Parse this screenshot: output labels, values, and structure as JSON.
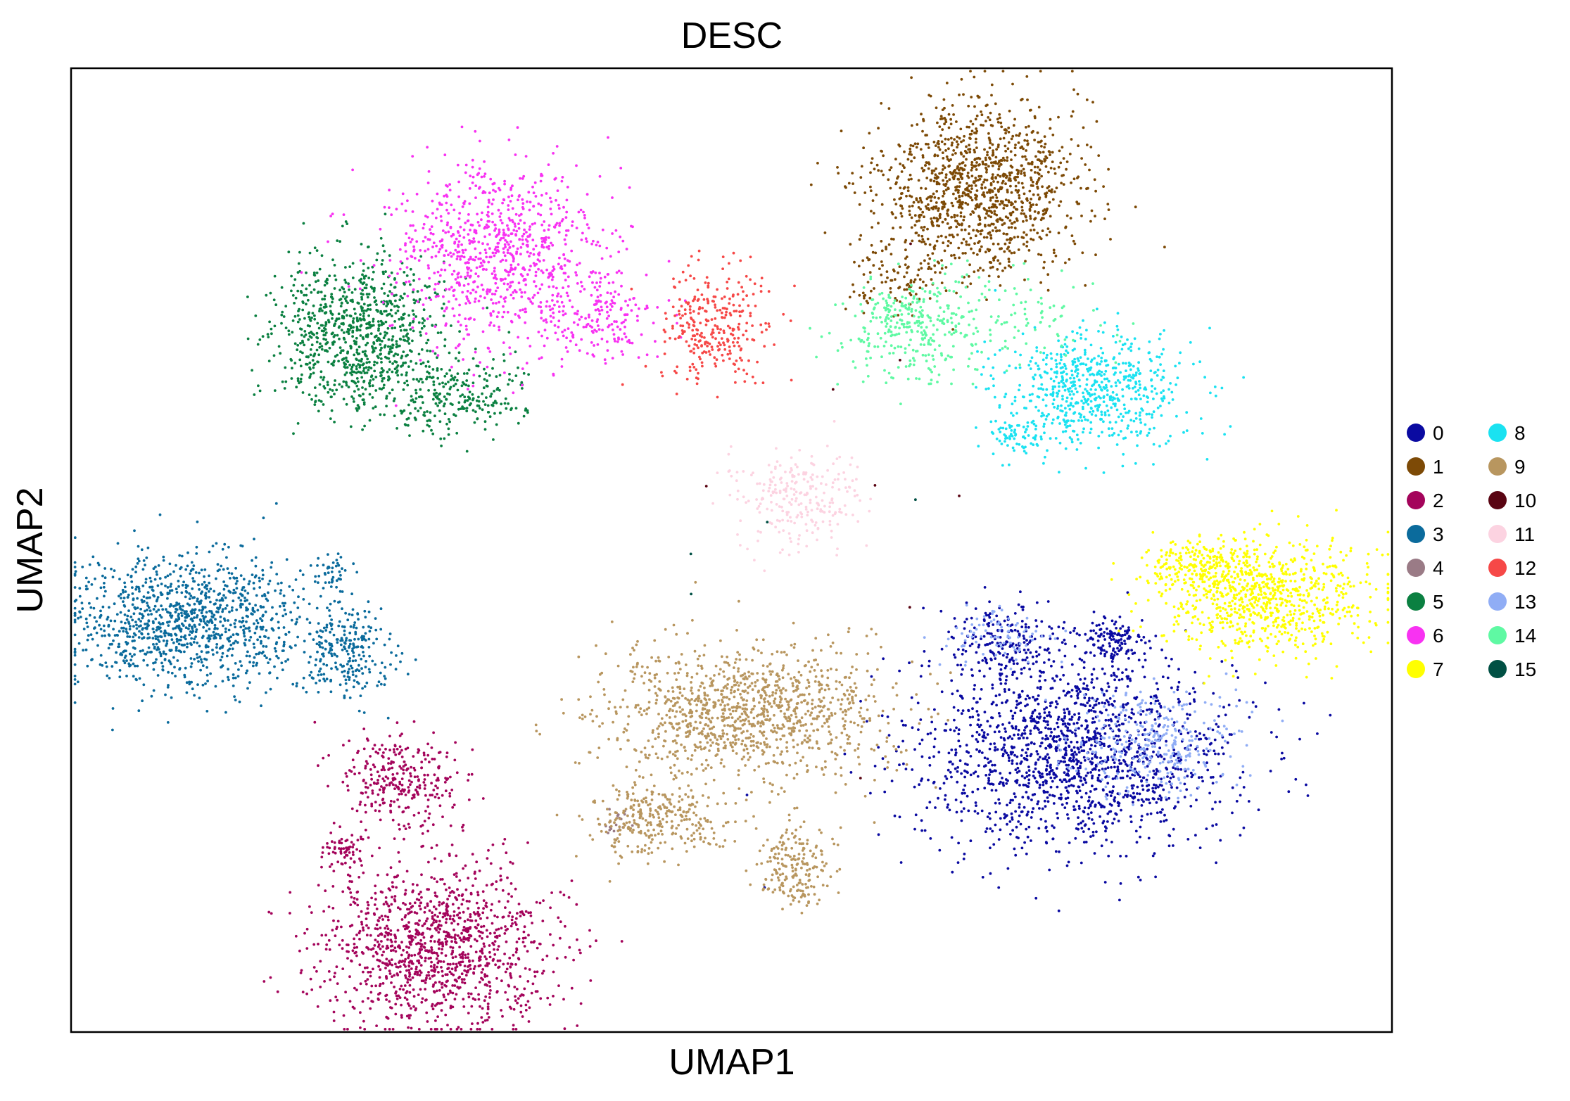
{
  "chart_data": {
    "type": "scatter",
    "title": "DESC",
    "xlabel": "UMAP1",
    "ylabel": "UMAP2",
    "xlim": [
      0,
      100
    ],
    "ylim": [
      0,
      100
    ],
    "grid": false,
    "ticks": false,
    "legend_position": "right",
    "legend_columns": 2,
    "series": [
      {
        "name": "0",
        "color": "#0a0aa1",
        "clusters": [
          {
            "x": 76.0,
            "y": 29.0,
            "sx": 6.0,
            "sy": 5.0,
            "n": 1600
          },
          {
            "x": 70.5,
            "y": 40.5,
            "sx": 2.2,
            "sy": 2.2,
            "n": 200
          },
          {
            "x": 78.9,
            "y": 40.5,
            "sx": 1.2,
            "sy": 1.2,
            "n": 120
          }
        ]
      },
      {
        "name": "1",
        "color": "#7d4a06",
        "clusters": [
          {
            "x": 68.6,
            "y": 87.5,
            "sx": 3.8,
            "sy": 4.5,
            "n": 1200
          },
          {
            "x": 62.0,
            "y": 78.0,
            "sx": 1.8,
            "sy": 1.5,
            "n": 80
          }
        ]
      },
      {
        "name": "2",
        "color": "#a4045b",
        "clusters": [
          {
            "x": 27.8,
            "y": 9.0,
            "sx": 4.5,
            "sy": 4.0,
            "n": 1200
          },
          {
            "x": 25.0,
            "y": 26.0,
            "sx": 2.2,
            "sy": 2.5,
            "n": 300
          },
          {
            "x": 20.5,
            "y": 19.0,
            "sx": 1.0,
            "sy": 0.8,
            "n": 60
          }
        ]
      },
      {
        "name": "3",
        "color": "#0b6b9c",
        "clusters": [
          {
            "x": 8.8,
            "y": 42.5,
            "sx": 4.5,
            "sy": 3.5,
            "n": 1100
          },
          {
            "x": 20.8,
            "y": 39.5,
            "sx": 1.8,
            "sy": 2.5,
            "n": 250
          },
          {
            "x": 19.7,
            "y": 48.0,
            "sx": 0.7,
            "sy": 0.9,
            "n": 40
          }
        ]
      },
      {
        "name": "4",
        "color": "#9a7b86",
        "clusters": [
          {
            "x": 41.2,
            "y": 21.5,
            "sx": 0.7,
            "sy": 0.8,
            "n": 18
          }
        ]
      },
      {
        "name": "5",
        "color": "#0b8041",
        "clusters": [
          {
            "x": 21.5,
            "y": 72.5,
            "sx": 3.2,
            "sy": 3.8,
            "n": 900
          },
          {
            "x": 29.2,
            "y": 66.0,
            "sx": 2.8,
            "sy": 2.0,
            "n": 250
          }
        ]
      },
      {
        "name": "6",
        "color": "#f832f2",
        "clusters": [
          {
            "x": 32.2,
            "y": 80.5,
            "sx": 4.2,
            "sy": 4.8,
            "n": 900
          },
          {
            "x": 40.0,
            "y": 74.0,
            "sx": 2.5,
            "sy": 2.0,
            "n": 150
          }
        ]
      },
      {
        "name": "7",
        "color": "#ffff00",
        "clusters": [
          {
            "x": 90.2,
            "y": 45.0,
            "sx": 4.0,
            "sy": 3.0,
            "n": 800
          },
          {
            "x": 85.0,
            "y": 48.5,
            "sx": 2.0,
            "sy": 1.5,
            "n": 200
          }
        ]
      },
      {
        "name": "8",
        "color": "#1ae2f1",
        "clusters": [
          {
            "x": 77.2,
            "y": 66.5,
            "sx": 3.5,
            "sy": 3.0,
            "n": 650
          },
          {
            "x": 71.5,
            "y": 62.0,
            "sx": 1.0,
            "sy": 1.2,
            "n": 60
          }
        ]
      },
      {
        "name": "9",
        "color": "#b8965f",
        "clusters": [
          {
            "x": 51.0,
            "y": 33.0,
            "sx": 5.5,
            "sy": 3.5,
            "n": 1100
          },
          {
            "x": 44.3,
            "y": 22.0,
            "sx": 2.5,
            "sy": 2.0,
            "n": 300
          },
          {
            "x": 54.8,
            "y": 17.0,
            "sx": 1.5,
            "sy": 2.0,
            "n": 200
          },
          {
            "x": 57.5,
            "y": 35.0,
            "sx": 2.0,
            "sy": 2.0,
            "n": 50
          }
        ]
      },
      {
        "name": "10",
        "color": "#5a0513",
        "clusters": [
          {
            "x": 60.0,
            "y": 55.0,
            "sx": 8.0,
            "sy": 15.0,
            "n": 8
          }
        ]
      },
      {
        "name": "11",
        "color": "#fcd3e1",
        "clusters": [
          {
            "x": 55.0,
            "y": 55.5,
            "sx": 2.5,
            "sy": 2.5,
            "n": 250
          }
        ]
      },
      {
        "name": "12",
        "color": "#f64847",
        "clusters": [
          {
            "x": 48.5,
            "y": 73.5,
            "sx": 2.0,
            "sy": 3.0,
            "n": 300
          }
        ]
      },
      {
        "name": "13",
        "color": "#90adf5",
        "clusters": [
          {
            "x": 82.0,
            "y": 30.0,
            "sx": 3.0,
            "sy": 2.5,
            "n": 300
          },
          {
            "x": 70.0,
            "y": 41.0,
            "sx": 2.0,
            "sy": 1.5,
            "n": 80
          }
        ]
      },
      {
        "name": "14",
        "color": "#5ff9a3",
        "clusters": [
          {
            "x": 63.5,
            "y": 73.0,
            "sx": 2.5,
            "sy": 2.5,
            "n": 300
          },
          {
            "x": 70.0,
            "y": 73.5,
            "sx": 4.0,
            "sy": 3.0,
            "n": 120
          }
        ]
      },
      {
        "name": "15",
        "color": "#005044",
        "clusters": [
          {
            "x": 55.0,
            "y": 55.0,
            "sx": 8.0,
            "sy": 8.0,
            "n": 4
          }
        ]
      }
    ]
  }
}
